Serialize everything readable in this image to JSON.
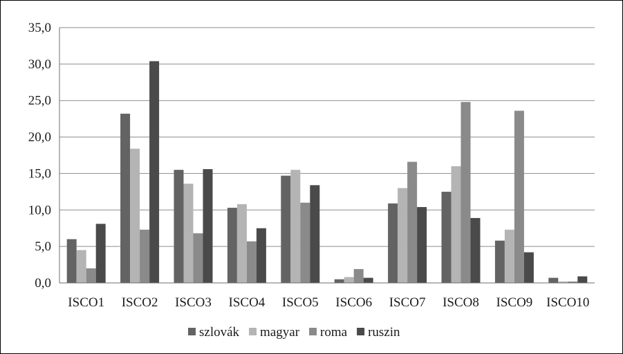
{
  "chart_data": {
    "type": "bar",
    "categories": [
      "ISCO1",
      "ISCO2",
      "ISCO3",
      "ISCO4",
      "ISCO5",
      "ISCO6",
      "ISCO7",
      "ISCO8",
      "ISCO9",
      "ISCO10"
    ],
    "series": [
      {
        "name": "szlovák",
        "color": "#636363",
        "values": [
          6.0,
          23.2,
          15.5,
          10.3,
          14.7,
          0.5,
          10.9,
          12.5,
          5.8,
          0.7
        ]
      },
      {
        "name": "magyar",
        "color": "#b4b4b4",
        "values": [
          4.5,
          18.4,
          13.6,
          10.8,
          15.5,
          0.8,
          13.0,
          16.0,
          7.3,
          0.2
        ]
      },
      {
        "name": "roma",
        "color": "#8a8a8a",
        "values": [
          2.0,
          7.3,
          6.8,
          5.7,
          11.0,
          1.9,
          16.6,
          24.8,
          23.6,
          0.2
        ]
      },
      {
        "name": "ruszin",
        "color": "#4a4a4a",
        "values": [
          8.1,
          30.4,
          15.6,
          7.5,
          13.4,
          0.7,
          10.4,
          8.9,
          4.2,
          0.9
        ]
      }
    ],
    "y_ticks": [
      "0,0",
      "5,0",
      "10,0",
      "15,0",
      "20,0",
      "25,0",
      "30,0",
      "35,0"
    ],
    "ylim": [
      0,
      35
    ],
    "grid": true,
    "legend_position": "bottom"
  }
}
